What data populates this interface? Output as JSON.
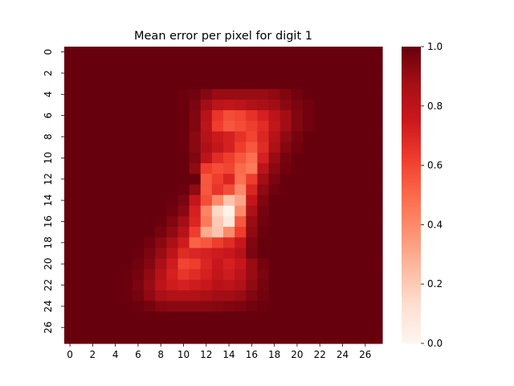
{
  "chart_data": {
    "type": "heatmap",
    "title": "Mean error per pixel for digit 1",
    "xlabel": "",
    "ylabel": "",
    "rows": 28,
    "cols": 28,
    "x_ticks": [
      0,
      2,
      4,
      6,
      8,
      10,
      12,
      14,
      16,
      18,
      20,
      22,
      24,
      26
    ],
    "y_ticks": [
      0,
      2,
      4,
      6,
      8,
      10,
      12,
      14,
      16,
      18,
      20,
      22,
      24,
      26
    ],
    "colormap": "Reds",
    "vmin": 0.0,
    "vmax": 1.0,
    "colorbar_ticks": [
      "0.0",
      "0.2",
      "0.4",
      "0.6",
      "0.8",
      "1.0"
    ],
    "grid": false,
    "values": [
      [
        1,
        1,
        1,
        1,
        1,
        1,
        1,
        1,
        1,
        1,
        1,
        1,
        1,
        1,
        1,
        1,
        1,
        1,
        1,
        1,
        1,
        1,
        1,
        1,
        1,
        1,
        1,
        1
      ],
      [
        1,
        1,
        1,
        1,
        1,
        1,
        1,
        1,
        1,
        1,
        1,
        1,
        1,
        1,
        1,
        1,
        1,
        1,
        1,
        1,
        1,
        1,
        1,
        1,
        1,
        1,
        1,
        1
      ],
      [
        1,
        1,
        1,
        1,
        1,
        1,
        1,
        1,
        1,
        1,
        1,
        1,
        1,
        1,
        1,
        1,
        1,
        1,
        1,
        1,
        1,
        1,
        1,
        1,
        1,
        1,
        1,
        1
      ],
      [
        1,
        1,
        1,
        1,
        1,
        1,
        1,
        1,
        1,
        1,
        1,
        1,
        1,
        1,
        1,
        1,
        1,
        1,
        1,
        1,
        1,
        1,
        1,
        1,
        1,
        1,
        1,
        1
      ],
      [
        1,
        1,
        1,
        1,
        1,
        1,
        1,
        1,
        1,
        1,
        0.99,
        0.98,
        0.94,
        0.9,
        0.9,
        0.9,
        0.9,
        0.9,
        0.92,
        0.95,
        0.98,
        1,
        1,
        1,
        1,
        1,
        1,
        1
      ],
      [
        1,
        1,
        1,
        1,
        1,
        1,
        1,
        1,
        1,
        1,
        0.99,
        0.96,
        0.88,
        0.8,
        0.78,
        0.8,
        0.84,
        0.86,
        0.88,
        0.93,
        0.96,
        0.98,
        1,
        1,
        1,
        1,
        1,
        1
      ],
      [
        1,
        1,
        1,
        1,
        1,
        1,
        1,
        1,
        1,
        1,
        0.99,
        0.95,
        0.82,
        0.65,
        0.58,
        0.6,
        0.66,
        0.72,
        0.8,
        0.88,
        0.95,
        0.98,
        1,
        1,
        1,
        1,
        1,
        1
      ],
      [
        1,
        1,
        1,
        1,
        1,
        1,
        1,
        1,
        1,
        1,
        0.99,
        0.95,
        0.8,
        0.62,
        0.55,
        0.58,
        0.62,
        0.68,
        0.78,
        0.88,
        0.95,
        0.98,
        1,
        1,
        1,
        1,
        1,
        1
      ],
      [
        1,
        1,
        1,
        1,
        1,
        1,
        1,
        1,
        1,
        1.05,
        0.99,
        0.93,
        0.82,
        0.75,
        0.72,
        0.66,
        0.6,
        0.7,
        0.82,
        0.92,
        0.97,
        1,
        1,
        1,
        1,
        1,
        1,
        1
      ],
      [
        1,
        1,
        1,
        1,
        1,
        1,
        1,
        1,
        1,
        1.05,
        0.99,
        0.93,
        0.85,
        0.78,
        0.72,
        0.62,
        0.55,
        0.68,
        0.85,
        0.94,
        0.98,
        1,
        1,
        1,
        1,
        1,
        1,
        1
      ],
      [
        1,
        1,
        1,
        1,
        1,
        1,
        1,
        1,
        1,
        1,
        1,
        0.95,
        0.8,
        0.68,
        0.62,
        0.55,
        0.48,
        0.72,
        0.9,
        0.97,
        1,
        1,
        1,
        1,
        1,
        1,
        1,
        1
      ],
      [
        1,
        1,
        1,
        1,
        1,
        1,
        1,
        1,
        1,
        1,
        1,
        0.92,
        0.62,
        0.58,
        0.6,
        0.5,
        0.45,
        0.8,
        0.93,
        0.98,
        1,
        1,
        1,
        1,
        1,
        1,
        1,
        1
      ],
      [
        1,
        1,
        1,
        1,
        1,
        1,
        1,
        1,
        1,
        1,
        1,
        1.05,
        0.55,
        0.62,
        0.7,
        0.48,
        0.62,
        0.88,
        0.96,
        1,
        1,
        1,
        1,
        1,
        1,
        1,
        1,
        1
      ],
      [
        1,
        1,
        1,
        1,
        1,
        1,
        1,
        1,
        1,
        1,
        0.99,
        0.92,
        0.55,
        0.65,
        0.58,
        0.4,
        0.7,
        0.92,
        0.98,
        1,
        1,
        1,
        1,
        1,
        1,
        1,
        1,
        1
      ],
      [
        1,
        1,
        1,
        1,
        1,
        1,
        1,
        1,
        1,
        0.99,
        0.96,
        0.78,
        0.58,
        0.4,
        0.22,
        0.32,
        0.78,
        0.95,
        1,
        1,
        1,
        1,
        1,
        1,
        1,
        1,
        1,
        1
      ],
      [
        1,
        1,
        1,
        1,
        1,
        1,
        1,
        1,
        1,
        0.98,
        0.93,
        0.72,
        0.42,
        0.15,
        0.02,
        0.4,
        0.85,
        0.97,
        1,
        1,
        1,
        1,
        1,
        1,
        1,
        1,
        1,
        1
      ],
      [
        1,
        1,
        1,
        1,
        1,
        1,
        1,
        1,
        0.99,
        0.95,
        0.88,
        0.7,
        0.45,
        0.2,
        0.08,
        0.55,
        0.9,
        0.98,
        1,
        1,
        1,
        1,
        1,
        1,
        1,
        1,
        1,
        1
      ],
      [
        1,
        1,
        1,
        1,
        1,
        1,
        1,
        1,
        0.97,
        0.92,
        0.82,
        0.62,
        0.3,
        0.22,
        0.4,
        0.62,
        0.92,
        0.99,
        1,
        1,
        1,
        1,
        1,
        1,
        1,
        1,
        1,
        1
      ],
      [
        1,
        1,
        1,
        1,
        1,
        1,
        1,
        0.98,
        0.93,
        0.86,
        0.74,
        0.52,
        0.55,
        0.62,
        0.68,
        0.76,
        0.95,
        1,
        1,
        1,
        1,
        1,
        1,
        1,
        1,
        1,
        1,
        1
      ],
      [
        1,
        1,
        1,
        1,
        1,
        1,
        0.99,
        0.96,
        0.9,
        0.8,
        0.68,
        0.7,
        0.72,
        0.74,
        0.76,
        0.82,
        0.96,
        1,
        1,
        1,
        1,
        1,
        1,
        1,
        1,
        1,
        1,
        1
      ],
      [
        1,
        1,
        1,
        1,
        1,
        1,
        0.98,
        0.94,
        0.86,
        0.74,
        0.6,
        0.62,
        0.7,
        0.76,
        0.72,
        0.76,
        0.9,
        0.97,
        1,
        1,
        1,
        1,
        1,
        1,
        1,
        1,
        1,
        1
      ],
      [
        1,
        1,
        1,
        1,
        1,
        0.99,
        0.97,
        0.92,
        0.82,
        0.72,
        0.65,
        0.68,
        0.72,
        0.78,
        0.74,
        0.8,
        0.9,
        0.96,
        1,
        1,
        1,
        1,
        1,
        1,
        1,
        1,
        1,
        1
      ],
      [
        1,
        1,
        1,
        1,
        1,
        0.99,
        0.96,
        0.9,
        0.8,
        0.74,
        0.72,
        0.74,
        0.76,
        0.82,
        0.8,
        0.84,
        0.92,
        0.97,
        1,
        1,
        1,
        1,
        1,
        1,
        1,
        1,
        1,
        1
      ],
      [
        1,
        1,
        1,
        1,
        1,
        0.99,
        0.97,
        0.92,
        0.86,
        0.84,
        0.84,
        0.84,
        0.86,
        0.88,
        0.88,
        0.9,
        0.95,
        0.98,
        1,
        1,
        1,
        1,
        1,
        1,
        1,
        1,
        1,
        1
      ],
      [
        1,
        1,
        1,
        1,
        1,
        1,
        0.99,
        0.97,
        0.94,
        0.93,
        0.93,
        0.93,
        0.93,
        0.94,
        0.95,
        0.96,
        0.98,
        0.99,
        1,
        1,
        1,
        1,
        1,
        1,
        1,
        1,
        1,
        1
      ],
      [
        1,
        1,
        1,
        1,
        1,
        1,
        1,
        1,
        1,
        1,
        1,
        1,
        1,
        1,
        1,
        1,
        1,
        1,
        1,
        1,
        1,
        1,
        1,
        1,
        1,
        1,
        1,
        1
      ],
      [
        1,
        1,
        1,
        1,
        1,
        1,
        1,
        1,
        1,
        1,
        1,
        1,
        1,
        1,
        1,
        1,
        1,
        1,
        1,
        1,
        1,
        1,
        1,
        1,
        1,
        1,
        1,
        1
      ],
      [
        1,
        1,
        1,
        1,
        1,
        1,
        1,
        1,
        1,
        1,
        1,
        1,
        1,
        1,
        1,
        1,
        1,
        1,
        1,
        1,
        1,
        1,
        1,
        1,
        1,
        1,
        1,
        1
      ]
    ]
  }
}
